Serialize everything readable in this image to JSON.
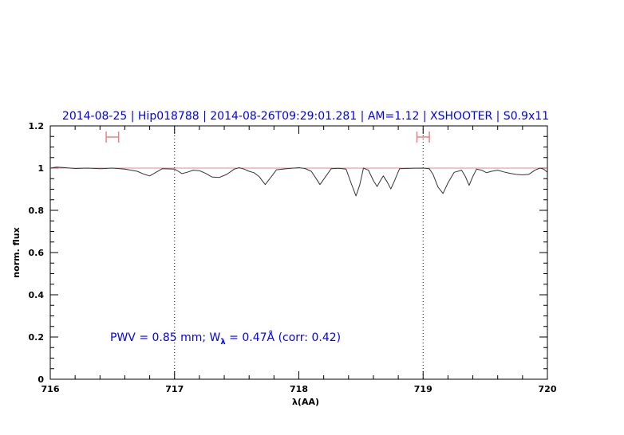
{
  "chart_data": {
    "type": "line",
    "title": "2014-08-25 | Hip018788 | 2014-08-26T09:29:01.281 | AM=1.12 | XSHOOTER | S0.9x11",
    "xlabel": "λ(AA)",
    "ylabel": "norm. flux",
    "xlim": [
      716,
      720
    ],
    "ylim": [
      0,
      1.2
    ],
    "xticks": [
      "716",
      "717",
      "718",
      "719",
      "720"
    ],
    "yticks": [
      "0",
      "0.2",
      "0.4",
      "0.6",
      "0.8",
      "1",
      "1.2"
    ],
    "annotation": {
      "prefix": "PWV  =  0.85  mm;  W",
      "sub": "λ",
      "suffix": "  =  0.47Å  (corr:  0.42)"
    },
    "continuum": 1.0,
    "vertical_markers": [
      717,
      719
    ],
    "ranges": [
      [
        716.45,
        716.55
      ],
      [
        718.95,
        719.05
      ]
    ],
    "range_flux": 1.147,
    "colors": {
      "title": "#0000ff",
      "annotation": "#0000ff",
      "continuum": "#e06060",
      "ranges": "#f08080",
      "spectrum": "#333333"
    },
    "series": [
      {
        "x": [
          716.0,
          716.05,
          716.1,
          716.2,
          716.3,
          716.4,
          716.5,
          716.6,
          716.7,
          716.75,
          716.8,
          716.85,
          716.9,
          717.0,
          717.03,
          717.06,
          717.1,
          717.15,
          717.2,
          717.25,
          717.3,
          717.36,
          717.42,
          717.48,
          717.52,
          717.56,
          717.6,
          717.64,
          717.68,
          717.73,
          717.78,
          717.82,
          717.9,
          718.0,
          718.05,
          718.1,
          718.14,
          718.17,
          718.21,
          718.26,
          718.32,
          718.38,
          718.42,
          718.46,
          718.49,
          718.52,
          718.56,
          718.6,
          718.63,
          718.66,
          718.68,
          718.71,
          718.74,
          718.77,
          718.81,
          718.9,
          719.0,
          719.05,
          719.08,
          719.12,
          719.16,
          719.2,
          719.25,
          719.31,
          719.34,
          719.37,
          719.4,
          719.43,
          719.47,
          719.51,
          719.55,
          719.6,
          719.65,
          719.7,
          719.75,
          719.8,
          719.85,
          719.9,
          719.94,
          719.97,
          720.0
        ],
        "y": [
          1.0,
          1.005,
          1.003,
          0.998,
          1.0,
          0.997,
          1.0,
          0.995,
          0.985,
          0.972,
          0.963,
          0.98,
          0.997,
          0.995,
          0.985,
          0.974,
          0.98,
          0.99,
          0.988,
          0.975,
          0.958,
          0.956,
          0.97,
          0.995,
          1.002,
          0.995,
          0.985,
          0.978,
          0.96,
          0.922,
          0.96,
          0.992,
          0.997,
          1.002,
          0.998,
          0.985,
          0.95,
          0.922,
          0.955,
          0.997,
          0.999,
          0.995,
          0.93,
          0.868,
          0.92,
          1.0,
          0.99,
          0.94,
          0.913,
          0.945,
          0.963,
          0.935,
          0.901,
          0.94,
          0.997,
          0.999,
          1.0,
          0.997,
          0.97,
          0.91,
          0.88,
          0.93,
          0.98,
          0.99,
          0.96,
          0.918,
          0.96,
          0.995,
          0.99,
          0.978,
          0.985,
          0.99,
          0.982,
          0.975,
          0.97,
          0.968,
          0.97,
          0.99,
          1.0,
          0.995,
          0.98
        ]
      }
    ]
  }
}
